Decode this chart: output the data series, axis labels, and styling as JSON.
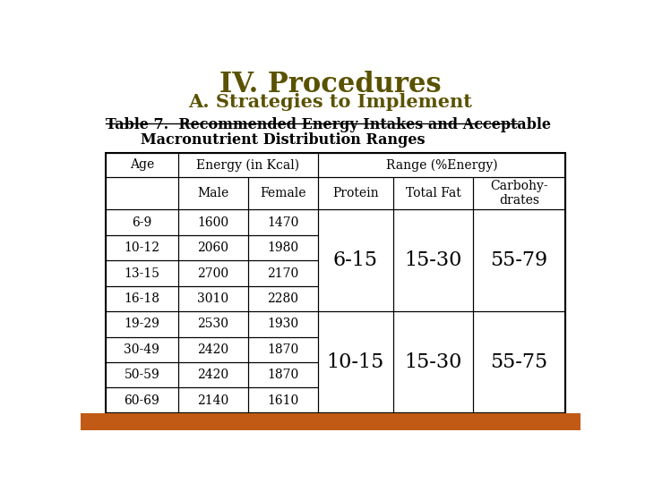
{
  "title1": "IV. Procedures",
  "title2": "A. Strategies to Implement",
  "table_title_line1": "Table 7.  Recommended Energy Intakes and Acceptable",
  "table_title_line2": "Macronutrient Distribution Ranges",
  "title1_color": "#5a5200",
  "title2_color": "#5a5200",
  "table_title_color": "#000000",
  "bg_color": "#ffffff",
  "bottom_bar_color": "#c05a14",
  "rows": [
    [
      "6-9",
      "1600",
      "1470"
    ],
    [
      "10-12",
      "2060",
      "1980"
    ],
    [
      "13-15",
      "2700",
      "2170"
    ],
    [
      "16-18",
      "3010",
      "2280"
    ],
    [
      "19-29",
      "2530",
      "1930"
    ],
    [
      "30-49",
      "2420",
      "1870"
    ],
    [
      "50-59",
      "2420",
      "1870"
    ],
    [
      "60-69",
      "2140",
      "1610"
    ]
  ],
  "range_data_1": [
    "6-15",
    "15-30",
    "55-79"
  ],
  "range_data_2": [
    "10-15",
    "15-30",
    "55-75"
  ],
  "header1_labels": [
    "Age",
    "Energy (in Kcal)",
    "Range (%Energy)"
  ],
  "header2_labels": [
    "",
    "Male",
    "Female",
    "Protein",
    "Total Fat",
    "Carbohy-\ndrates"
  ]
}
